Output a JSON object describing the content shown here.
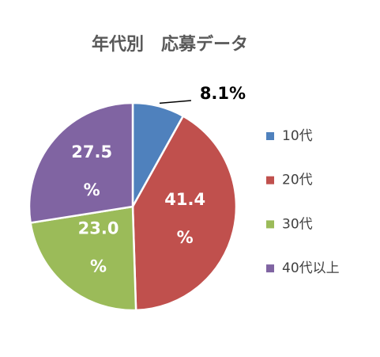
{
  "chart_data": {
    "type": "pie",
    "title": "年代別　応募データ",
    "categories": [
      "10代",
      "20代",
      "30代",
      "40代以上"
    ],
    "values": [
      8.1,
      41.4,
      23.0,
      27.5
    ],
    "value_labels": [
      "8.1%",
      "41.4%",
      "23.0%",
      "27.5%"
    ],
    "colors": [
      "#4f81bd",
      "#c0504d",
      "#9bbb59",
      "#8064a2"
    ],
    "legend": "right"
  }
}
